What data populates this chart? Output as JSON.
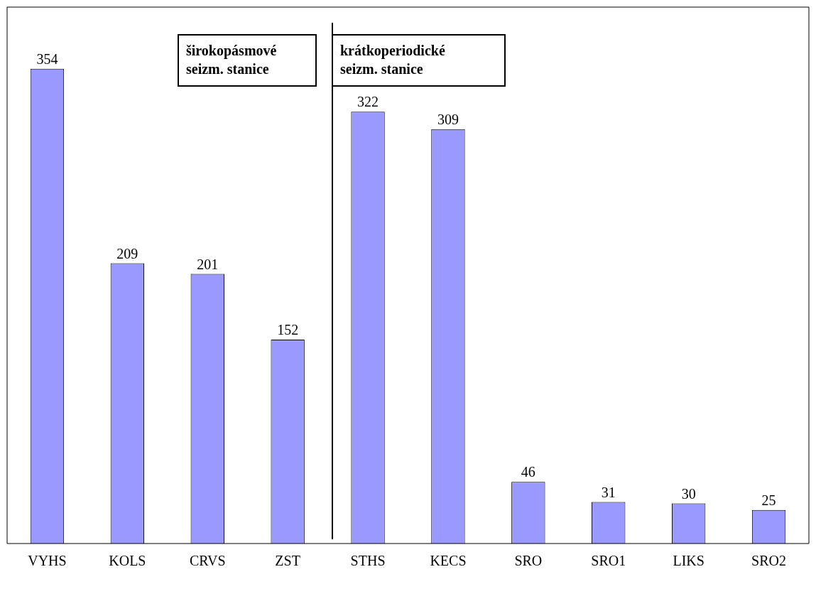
{
  "chart_data": {
    "type": "bar",
    "categories": [
      "VYHS",
      "KOLS",
      "CRVS",
      "ZST",
      "STHS",
      "KECS",
      "SRO",
      "SRO1",
      "LIKS",
      "SRO2"
    ],
    "values": [
      354,
      209,
      201,
      152,
      322,
      309,
      46,
      31,
      30,
      25
    ],
    "color": "#9999ff",
    "data_labels": true,
    "grid": false,
    "legend": false,
    "annotations": [
      "širokopásmové seizm. stanice",
      "krátkoperiodické seizm. stanice"
    ]
  }
}
